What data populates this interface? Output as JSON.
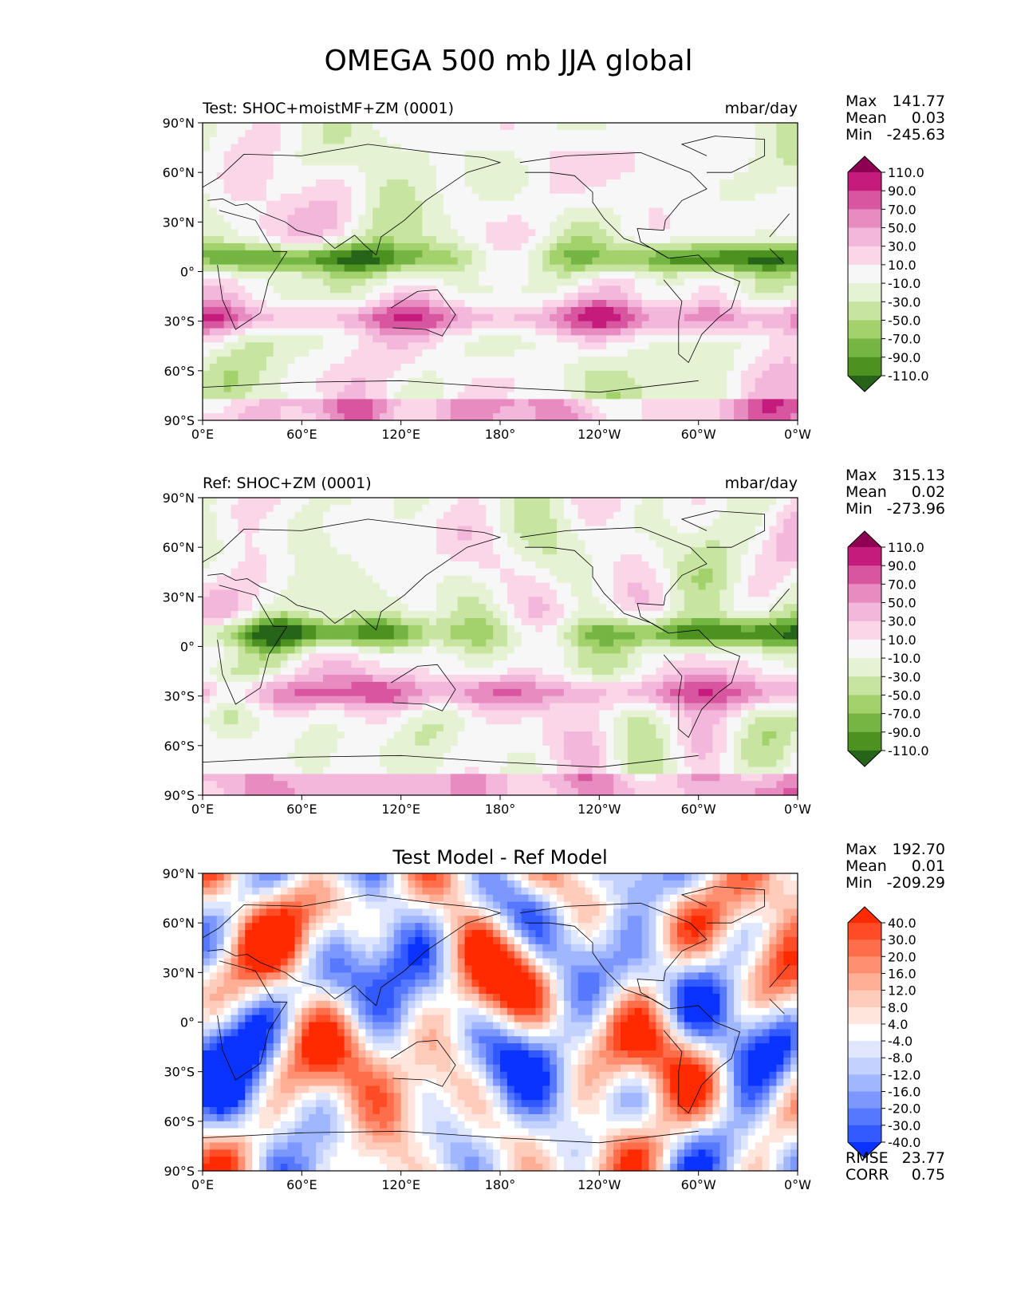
{
  "figure": {
    "title": "OMEGA 500 mb JJA global"
  },
  "chart_data": [
    {
      "type": "heatmap",
      "panel": "test",
      "title_left": "Test: SHOC+moistMF+ZM (0001)",
      "title_right": "mbar/day",
      "x_ticks": [
        "0°E",
        "60°E",
        "120°E",
        "180°",
        "120°W",
        "60°W",
        "0°W"
      ],
      "y_ticks": [
        "90°N",
        "60°N",
        "30°N",
        "0°",
        "30°S",
        "60°S",
        "90°S"
      ],
      "xlim": [
        0,
        360
      ],
      "ylim": [
        -90,
        90
      ],
      "stats": {
        "max_label": "Max",
        "max": "141.77",
        "mean_label": "Mean",
        "mean": "0.03",
        "min_label": "Min",
        "min": "-245.63"
      },
      "colorbar": {
        "levels": [
          "110.0",
          "90.0",
          "70.0",
          "50.0",
          "30.0",
          "10.0",
          "-10.0",
          "-30.0",
          "-50.0",
          "-70.0",
          "-90.0",
          "-110.0"
        ],
        "colors": [
          "#8e0152",
          "#c51b7d",
          "#d8559f",
          "#e78bc1",
          "#f2b7da",
          "#fad6e8",
          "#f7f7f7",
          "#e6f2d4",
          "#c7e5a0",
          "#a3d16b",
          "#74b543",
          "#4d9221",
          "#276419"
        ]
      }
    },
    {
      "type": "heatmap",
      "panel": "ref",
      "title_left": "Ref: SHOC+ZM (0001)",
      "title_right": "mbar/day",
      "x_ticks": [
        "0°E",
        "60°E",
        "120°E",
        "180°",
        "120°W",
        "60°W",
        "0°W"
      ],
      "y_ticks": [
        "90°N",
        "60°N",
        "30°N",
        "0°",
        "30°S",
        "60°S",
        "90°S"
      ],
      "xlim": [
        0,
        360
      ],
      "ylim": [
        -90,
        90
      ],
      "stats": {
        "max_label": "Max",
        "max": "315.13",
        "mean_label": "Mean",
        "mean": "0.02",
        "min_label": "Min",
        "min": "-273.96"
      },
      "colorbar": {
        "levels": [
          "110.0",
          "90.0",
          "70.0",
          "50.0",
          "30.0",
          "10.0",
          "-10.0",
          "-30.0",
          "-50.0",
          "-70.0",
          "-90.0",
          "-110.0"
        ],
        "colors": [
          "#8e0152",
          "#c51b7d",
          "#d8559f",
          "#e78bc1",
          "#f2b7da",
          "#fad6e8",
          "#f7f7f7",
          "#e6f2d4",
          "#c7e5a0",
          "#a3d16b",
          "#74b543",
          "#4d9221",
          "#276419"
        ]
      }
    },
    {
      "type": "heatmap",
      "panel": "diff",
      "title_center": "Test Model - Ref Model",
      "x_ticks": [
        "0°E",
        "60°E",
        "120°E",
        "180°",
        "120°W",
        "60°W",
        "0°W"
      ],
      "y_ticks": [
        "90°N",
        "60°N",
        "30°N",
        "0°",
        "30°S",
        "60°S",
        "90°S"
      ],
      "xlim": [
        0,
        360
      ],
      "ylim": [
        -90,
        90
      ],
      "stats": {
        "max_label": "Max",
        "max": "192.70",
        "mean_label": "Mean",
        "mean": "0.01",
        "min_label": "Min",
        "min": "-209.29"
      },
      "extra_stats": {
        "rmse_label": "RMSE",
        "rmse": "23.77",
        "corr_label": "CORR",
        "corr": "0.75"
      },
      "colorbar": {
        "levels": [
          "40.0",
          "30.0",
          "20.0",
          "16.0",
          "12.0",
          "8.0",
          "4.0",
          "-4.0",
          "-8.0",
          "-12.0",
          "-16.0",
          "-20.0",
          "-30.0",
          "-40.0"
        ],
        "colors": [
          "#ff2a00",
          "#ff4c24",
          "#ff6e4a",
          "#ff8f70",
          "#ffae96",
          "#ffcbbb",
          "#ffe5dc",
          "#ffffff",
          "#dfe7ff",
          "#c2d1ff",
          "#a0b6ff",
          "#7c98ff",
          "#5678ff",
          "#3258ff",
          "#0a33ff"
        ]
      }
    }
  ]
}
